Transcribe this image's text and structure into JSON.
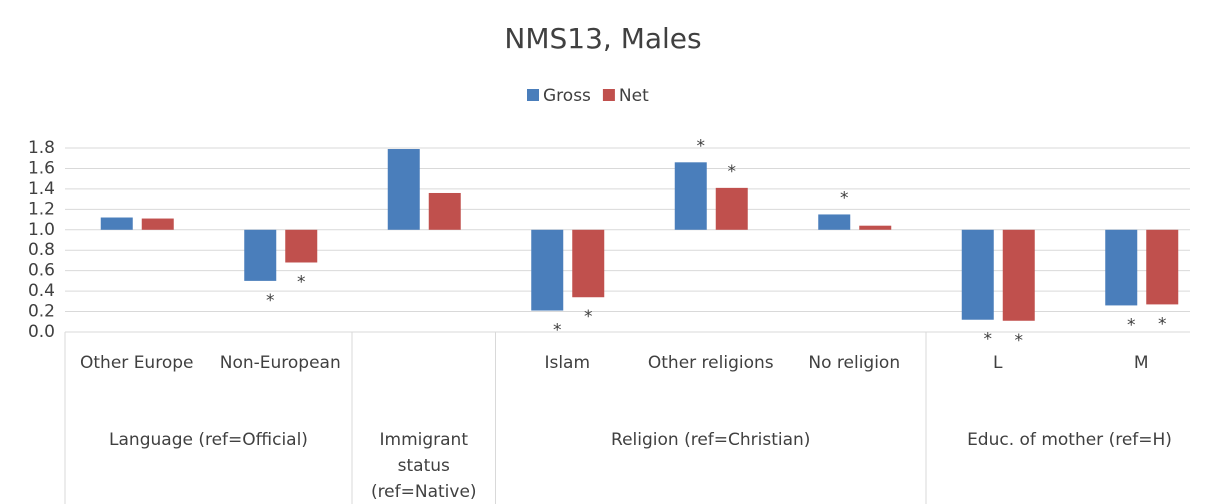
{
  "chart_data": {
    "type": "bar",
    "title": "NMS13, Males",
    "categories": [
      "Other Europe",
      "Non-European",
      null,
      "Islam",
      "Other religions",
      "No religion",
      "L",
      "M"
    ],
    "groups": [
      {
        "label": "Language (ref=Official)",
        "span": 2
      },
      {
        "label": "Immigrant status (ref=Native)",
        "span": 1
      },
      {
        "label": "Religion (ref=Christian)",
        "span": 3
      },
      {
        "label": "Educ. of mother (ref=H)",
        "span": 2
      }
    ],
    "baseline": 1.0,
    "series": [
      {
        "name": "Gross",
        "color": "#4a7ebb",
        "values": [
          1.12,
          0.5,
          1.79,
          0.21,
          1.66,
          1.15,
          0.12,
          0.26
        ],
        "markers": [
          null,
          "*",
          null,
          "*",
          "*",
          "*",
          "*",
          "*"
        ]
      },
      {
        "name": "Net",
        "color": "#c0504d",
        "values": [
          1.11,
          0.68,
          1.36,
          0.34,
          1.41,
          1.04,
          0.11,
          0.27
        ],
        "markers": [
          null,
          "*",
          null,
          "*",
          "*",
          null,
          "*",
          "*"
        ]
      }
    ],
    "ylim": [
      0,
      1.8
    ],
    "yticks": [
      {
        "value": 0,
        "label": "0.0"
      },
      {
        "value": 0.2,
        "label": "0.2"
      },
      {
        "value": 0.4,
        "label": "0.4"
      },
      {
        "value": 0.6,
        "label": "0.6"
      },
      {
        "value": 0.8,
        "label": "0.8"
      },
      {
        "value": 1,
        "label": "1.0"
      },
      {
        "value": 1.2,
        "label": "1.2"
      },
      {
        "value": 1.4,
        "label": "1.4"
      },
      {
        "value": 1.6,
        "label": "1.6"
      },
      {
        "value": 1.8,
        "label": "1.8"
      }
    ],
    "grid": true,
    "legend": "top"
  }
}
